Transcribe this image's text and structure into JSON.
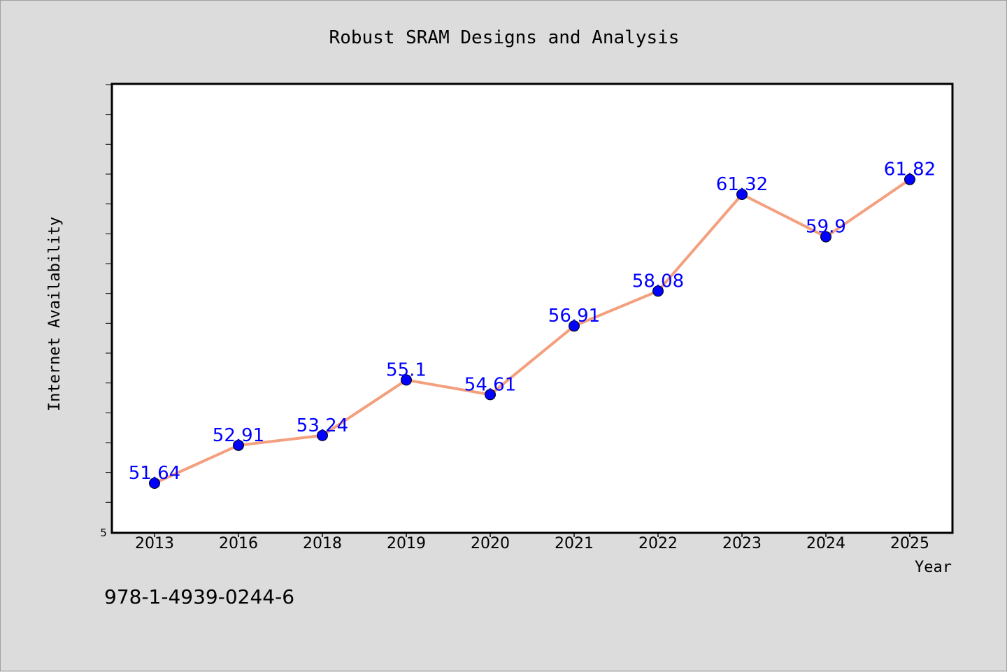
{
  "chart_data": {
    "type": "line",
    "title": "Robust SRAM Designs and Analysis",
    "xlabel": "Year",
    "ylabel": "Internet Availability",
    "categories": [
      "2013",
      "2016",
      "2018",
      "2019",
      "2020",
      "2021",
      "2022",
      "2023",
      "2024",
      "2025"
    ],
    "series": [
      {
        "values": [
          51.64,
          52.91,
          53.24,
          55.1,
          54.61,
          56.91,
          58.08,
          61.32,
          59.9,
          61.82
        ],
        "labels": [
          "51.64",
          "52.91",
          "53.24",
          "55.1",
          "54.61",
          "56.91",
          "58.08",
          "61.32",
          "59.9",
          "61.82"
        ],
        "line_color": "#f4a07e",
        "marker_color": "#0000ff"
      }
    ],
    "ylim": [
      50,
      65
    ],
    "y_tick_label": "5",
    "grid": false
  },
  "footer": {
    "isbn": "978-1-4939-0244-6"
  },
  "colors": {
    "background": "#dcdcdc",
    "plot_background": "#ffffff",
    "label_color": "#0000ff"
  }
}
